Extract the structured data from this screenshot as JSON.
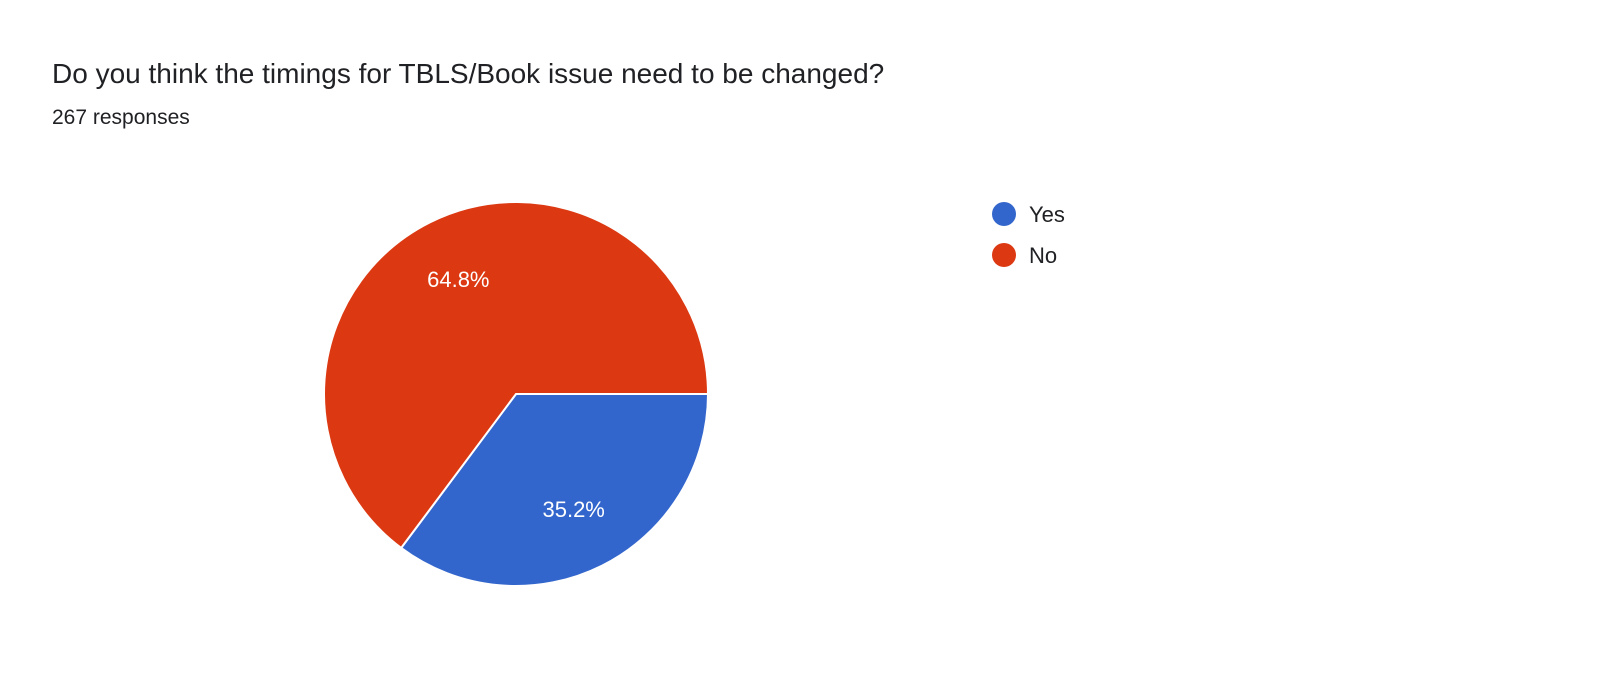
{
  "title": "Do you think the timings for TBLS/Book issue need to be changed?",
  "subtitle": "267 responses",
  "chart_data": {
    "type": "pie",
    "title": "Do you think the timings for TBLS/Book issue need to be changed?",
    "categories": [
      "Yes",
      "No"
    ],
    "values": [
      35.2,
      64.8
    ],
    "labels": [
      "35.2%",
      "64.8%"
    ],
    "colors": [
      "#3366cc",
      "#dc3912"
    ],
    "legend_position": "right"
  }
}
